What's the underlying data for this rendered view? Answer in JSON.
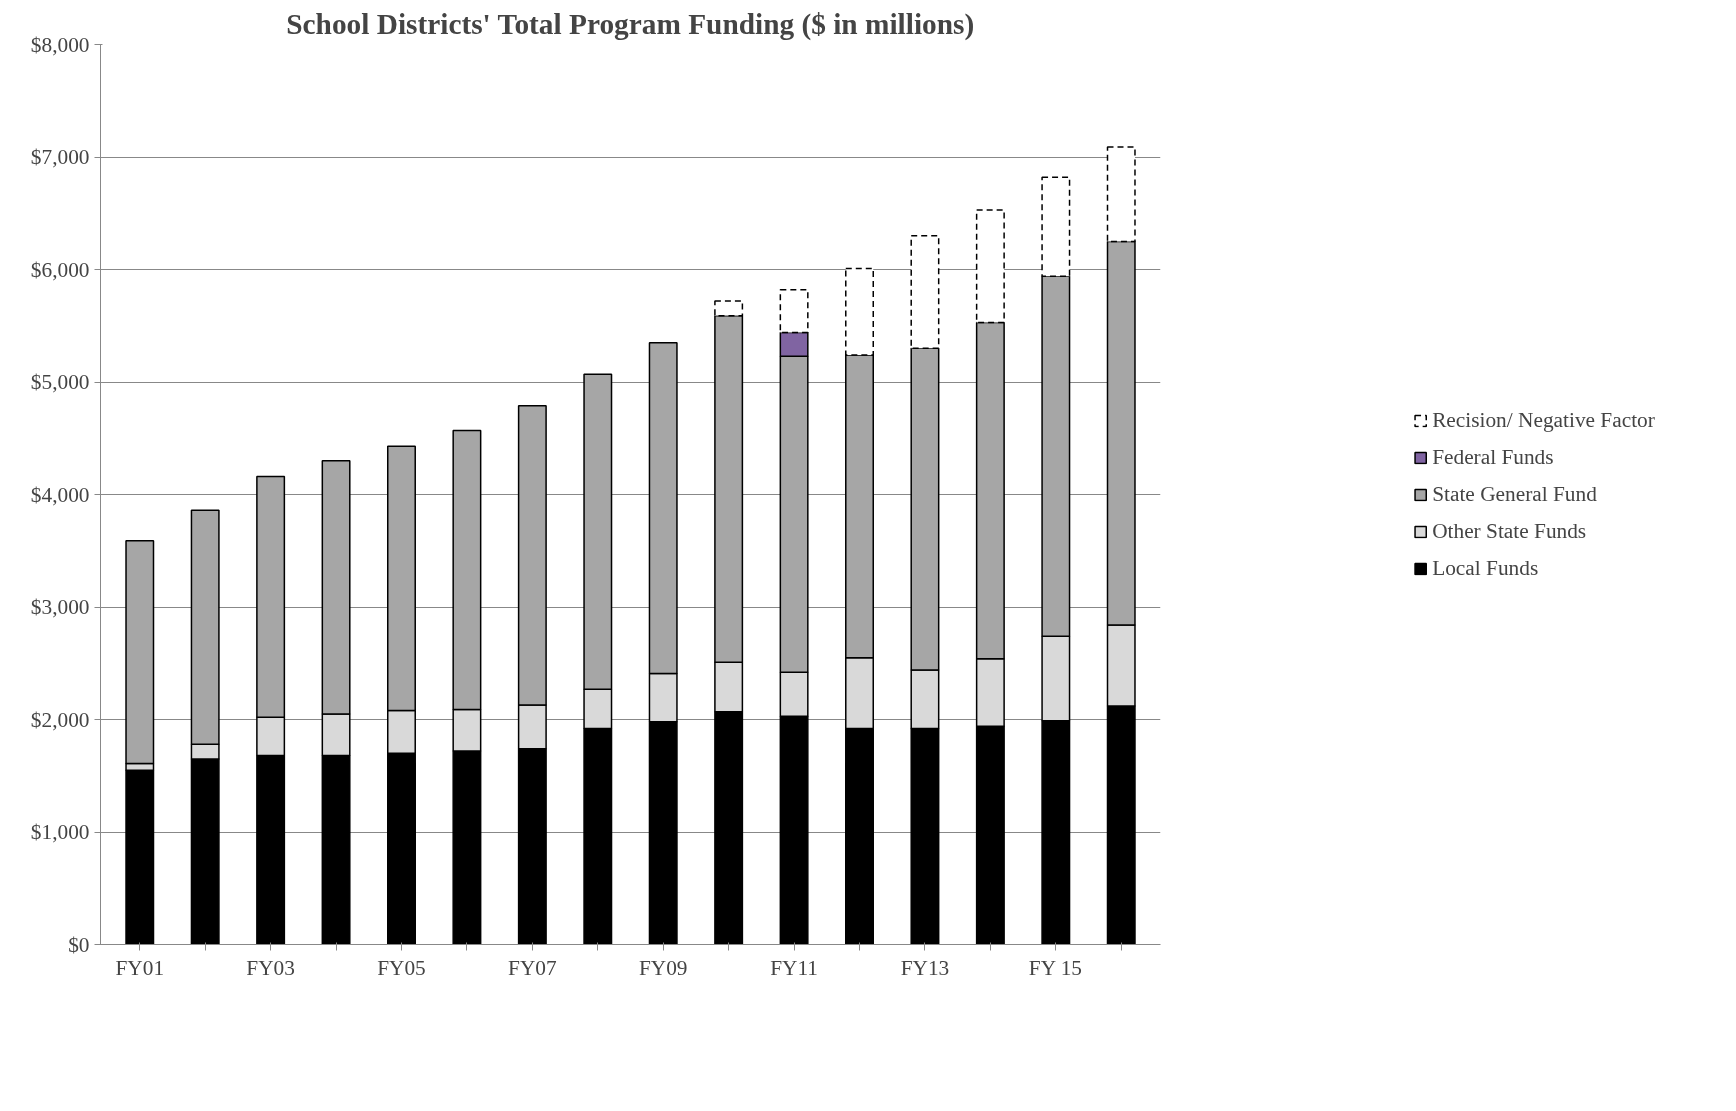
{
  "chart_data": {
    "type": "bar",
    "title": "School Districts' Total Program Funding ($ in millions)",
    "stacked": true,
    "categories": [
      "FY01",
      null,
      "FY03",
      null,
      "FY05",
      null,
      "FY07",
      null,
      "FY09",
      null,
      "FY11",
      null,
      "FY13",
      null,
      "FY 15",
      null
    ],
    "series": [
      {
        "name": "Local Funds",
        "color": "#000000",
        "values": [
          1550,
          1650,
          1680,
          1680,
          1700,
          1720,
          1740,
          1920,
          1980,
          2070,
          2030,
          1920,
          1920,
          1940,
          1990,
          2120
        ]
      },
      {
        "name": "Other State Funds",
        "color": "#d9d9d9",
        "values": [
          60,
          130,
          340,
          370,
          380,
          370,
          390,
          350,
          430,
          440,
          390,
          630,
          520,
          600,
          750,
          720
        ]
      },
      {
        "name": "State General Fund",
        "color": "#a6a6a6",
        "values": [
          1980,
          2080,
          2140,
          2250,
          2350,
          2480,
          2660,
          2800,
          2940,
          3080,
          2810,
          2690,
          2860,
          2990,
          3200,
          3410
        ]
      },
      {
        "name": "Federal Funds",
        "color": "#8064a2",
        "values": [
          null,
          null,
          null,
          null,
          null,
          null,
          null,
          null,
          null,
          null,
          210,
          null,
          null,
          null,
          null,
          null
        ]
      },
      {
        "name": "Recision/ Negative Factor",
        "color": "#000000",
        "line_style": "dashed",
        "values": [
          null,
          null,
          null,
          null,
          null,
          null,
          null,
          null,
          null,
          130,
          380,
          770,
          1000,
          1000,
          880,
          840
        ]
      }
    ],
    "ylim": [
      0,
      8000
    ],
    "yticks": [
      {
        "value": 0,
        "label": "$0"
      },
      {
        "value": 1000,
        "label": "$1,000"
      },
      {
        "value": 2000,
        "label": "$2,000"
      },
      {
        "value": 3000,
        "label": "$3,000"
      },
      {
        "value": 4000,
        "label": "$4,000"
      },
      {
        "value": 5000,
        "label": "$5,000"
      },
      {
        "value": 6000,
        "label": "$6,000"
      },
      {
        "value": 7000,
        "label": "$7,000"
      },
      {
        "value": 8000,
        "label": "$8,000"
      }
    ],
    "grid": "y",
    "legend": "right"
  }
}
